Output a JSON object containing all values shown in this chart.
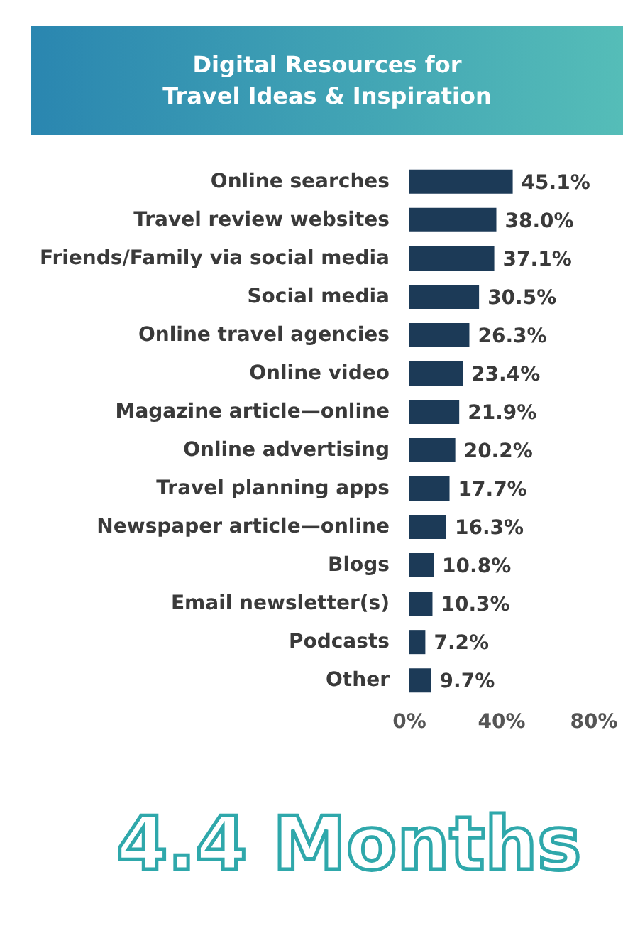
{
  "chart_data": {
    "type": "bar",
    "orientation": "horizontal",
    "title": "Digital Resources for Travel Ideas & Inspiration",
    "categories": [
      "Online searches",
      "Travel review websites",
      "Friends/Family via social media",
      "Social media",
      "Online travel agencies",
      "Online video",
      "Magazine article—online",
      "Online advertising",
      "Travel planning apps",
      "Newspaper article—online",
      "Blogs",
      "Email newsletter(s)",
      "Podcasts",
      "Other"
    ],
    "values": [
      45.1,
      38.0,
      37.1,
      30.5,
      26.3,
      23.4,
      21.9,
      20.2,
      17.7,
      16.3,
      10.8,
      10.3,
      7.2,
      9.7
    ],
    "value_labels": [
      "45.1%",
      "38.0%",
      "37.1%",
      "30.5%",
      "26.3%",
      "23.4%",
      "21.9%",
      "20.2%",
      "17.7%",
      "16.3%",
      "10.8%",
      "10.3%",
      "7.2%",
      "9.7%"
    ],
    "color": "#1c3a57",
    "xlim": [
      0,
      80
    ],
    "xticks": [
      {
        "value": 0,
        "label": "0%"
      },
      {
        "value": 40,
        "label": "40%"
      },
      {
        "value": 80,
        "label": "80%"
      }
    ],
    "grid": false,
    "annotations": [
      "4.4 Months"
    ]
  }
}
